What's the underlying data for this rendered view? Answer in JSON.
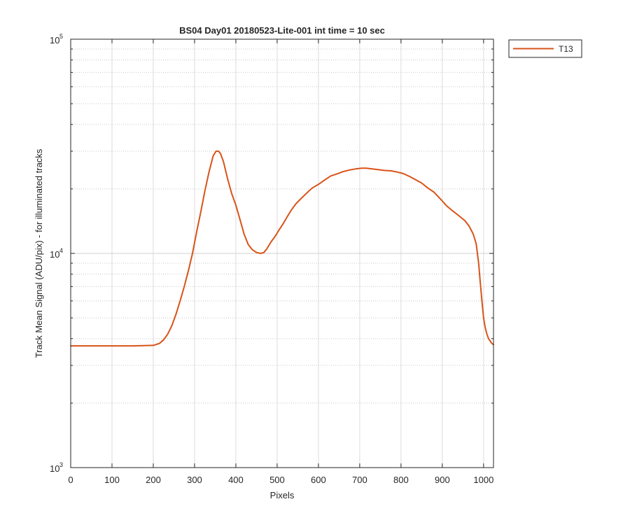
{
  "chart_data": {
    "type": "line",
    "title": "BS04 Day01 20180523-Lite-001 int time = 10 sec",
    "xlabel": "Pixels",
    "ylabel": "Track Mean Signal (ADU/pix) - for illuminated tracks",
    "xlim": [
      0,
      1024
    ],
    "ylim": [
      1000,
      100000
    ],
    "yscale": "log",
    "grid": true,
    "minor_grid_y": true,
    "legend_position": "outside-top-right",
    "x_ticks": [
      "0",
      "100",
      "200",
      "300",
      "400",
      "500",
      "600",
      "700",
      "800",
      "900",
      "1000"
    ],
    "y_ticks": [
      {
        "base": "10",
        "exp": "3"
      },
      {
        "base": "10",
        "exp": "4"
      },
      {
        "base": "10",
        "exp": "5"
      }
    ],
    "series": [
      {
        "name": "T13",
        "color": "#d95319",
        "x": [
          0,
          50,
          100,
          150,
          200,
          215,
          225,
          235,
          245,
          255,
          265,
          275,
          285,
          295,
          305,
          315,
          325,
          335,
          345,
          352,
          358,
          363,
          370,
          380,
          390,
          400,
          410,
          420,
          430,
          440,
          450,
          460,
          468,
          475,
          485,
          495,
          505,
          515,
          525,
          535,
          545,
          555,
          565,
          575,
          585,
          600,
          615,
          630,
          645,
          660,
          675,
          690,
          705,
          715,
          730,
          745,
          760,
          775,
          790,
          805,
          820,
          835,
          850,
          865,
          880,
          895,
          910,
          925,
          940,
          955,
          965,
          975,
          982,
          988,
          992,
          996,
          1000,
          1004,
          1008,
          1012,
          1016,
          1020,
          1024
        ],
        "y": [
          3700,
          3700,
          3700,
          3700,
          3720,
          3800,
          3950,
          4200,
          4600,
          5200,
          6000,
          7000,
          8300,
          10000,
          12600,
          15600,
          19600,
          24000,
          28500,
          30000,
          30000,
          29200,
          26800,
          22300,
          19000,
          16800,
          14400,
          12300,
          11000,
          10400,
          10100,
          10000,
          10100,
          10500,
          11300,
          12000,
          12900,
          13800,
          14900,
          16000,
          17000,
          17800,
          18600,
          19400,
          20200,
          21000,
          22000,
          23000,
          23500,
          24100,
          24500,
          24800,
          25000,
          25000,
          24800,
          24600,
          24400,
          24300,
          24000,
          23600,
          22900,
          22100,
          21300,
          20200,
          19300,
          18000,
          16700,
          15800,
          15000,
          14200,
          13400,
          12300,
          11100,
          9000,
          7300,
          6000,
          5000,
          4500,
          4200,
          4000,
          3900,
          3800,
          3750
        ]
      }
    ]
  }
}
